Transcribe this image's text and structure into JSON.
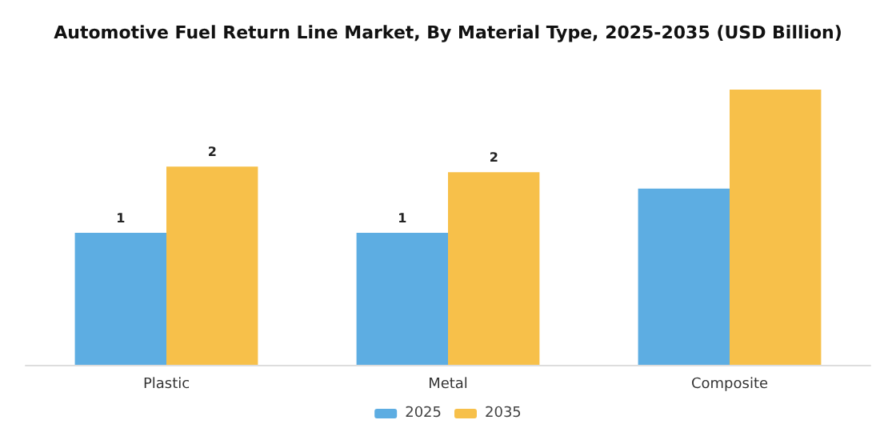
{
  "chart_data": {
    "type": "bar",
    "title": "Automotive Fuel Return Line Market, By Material Type, 2025-2035 (USD Billion)",
    "categories": [
      "Plastic",
      "Metal",
      "Composite"
    ],
    "ylabel": null,
    "series": [
      {
        "name": "2025",
        "color": "#5dade2",
        "values": [
          1.2,
          1.2,
          1.6
        ],
        "value_labels": [
          "1",
          "1",
          null
        ]
      },
      {
        "name": "2035",
        "color": "#f7c04a",
        "values": [
          1.8,
          1.75,
          2.5
        ],
        "value_labels": [
          "2",
          "2",
          null
        ]
      }
    ],
    "legend": "bottom"
  }
}
